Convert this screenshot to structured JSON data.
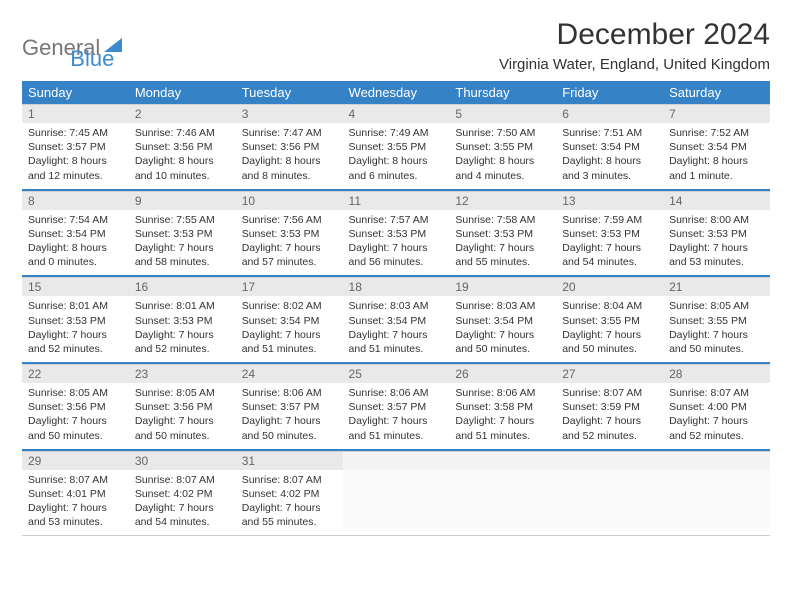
{
  "logo": {
    "text1": "General",
    "text2": "Blue"
  },
  "title": "December 2024",
  "location": "Virginia Water, England, United Kingdom",
  "colors": {
    "header_bg": "#3583c6",
    "daynum_bg": "#e9e9e9"
  },
  "daysOfWeek": [
    "Sunday",
    "Monday",
    "Tuesday",
    "Wednesday",
    "Thursday",
    "Friday",
    "Saturday"
  ],
  "weeks": [
    [
      {
        "n": "1",
        "sr": "7:45 AM",
        "ss": "3:57 PM",
        "dl": "8 hours and 12 minutes."
      },
      {
        "n": "2",
        "sr": "7:46 AM",
        "ss": "3:56 PM",
        "dl": "8 hours and 10 minutes."
      },
      {
        "n": "3",
        "sr": "7:47 AM",
        "ss": "3:56 PM",
        "dl": "8 hours and 8 minutes."
      },
      {
        "n": "4",
        "sr": "7:49 AM",
        "ss": "3:55 PM",
        "dl": "8 hours and 6 minutes."
      },
      {
        "n": "5",
        "sr": "7:50 AM",
        "ss": "3:55 PM",
        "dl": "8 hours and 4 minutes."
      },
      {
        "n": "6",
        "sr": "7:51 AM",
        "ss": "3:54 PM",
        "dl": "8 hours and 3 minutes."
      },
      {
        "n": "7",
        "sr": "7:52 AM",
        "ss": "3:54 PM",
        "dl": "8 hours and 1 minute."
      }
    ],
    [
      {
        "n": "8",
        "sr": "7:54 AM",
        "ss": "3:54 PM",
        "dl": "8 hours and 0 minutes."
      },
      {
        "n": "9",
        "sr": "7:55 AM",
        "ss": "3:53 PM",
        "dl": "7 hours and 58 minutes."
      },
      {
        "n": "10",
        "sr": "7:56 AM",
        "ss": "3:53 PM",
        "dl": "7 hours and 57 minutes."
      },
      {
        "n": "11",
        "sr": "7:57 AM",
        "ss": "3:53 PM",
        "dl": "7 hours and 56 minutes."
      },
      {
        "n": "12",
        "sr": "7:58 AM",
        "ss": "3:53 PM",
        "dl": "7 hours and 55 minutes."
      },
      {
        "n": "13",
        "sr": "7:59 AM",
        "ss": "3:53 PM",
        "dl": "7 hours and 54 minutes."
      },
      {
        "n": "14",
        "sr": "8:00 AM",
        "ss": "3:53 PM",
        "dl": "7 hours and 53 minutes."
      }
    ],
    [
      {
        "n": "15",
        "sr": "8:01 AM",
        "ss": "3:53 PM",
        "dl": "7 hours and 52 minutes."
      },
      {
        "n": "16",
        "sr": "8:01 AM",
        "ss": "3:53 PM",
        "dl": "7 hours and 52 minutes."
      },
      {
        "n": "17",
        "sr": "8:02 AM",
        "ss": "3:54 PM",
        "dl": "7 hours and 51 minutes."
      },
      {
        "n": "18",
        "sr": "8:03 AM",
        "ss": "3:54 PM",
        "dl": "7 hours and 51 minutes."
      },
      {
        "n": "19",
        "sr": "8:03 AM",
        "ss": "3:54 PM",
        "dl": "7 hours and 50 minutes."
      },
      {
        "n": "20",
        "sr": "8:04 AM",
        "ss": "3:55 PM",
        "dl": "7 hours and 50 minutes."
      },
      {
        "n": "21",
        "sr": "8:05 AM",
        "ss": "3:55 PM",
        "dl": "7 hours and 50 minutes."
      }
    ],
    [
      {
        "n": "22",
        "sr": "8:05 AM",
        "ss": "3:56 PM",
        "dl": "7 hours and 50 minutes."
      },
      {
        "n": "23",
        "sr": "8:05 AM",
        "ss": "3:56 PM",
        "dl": "7 hours and 50 minutes."
      },
      {
        "n": "24",
        "sr": "8:06 AM",
        "ss": "3:57 PM",
        "dl": "7 hours and 50 minutes."
      },
      {
        "n": "25",
        "sr": "8:06 AM",
        "ss": "3:57 PM",
        "dl": "7 hours and 51 minutes."
      },
      {
        "n": "26",
        "sr": "8:06 AM",
        "ss": "3:58 PM",
        "dl": "7 hours and 51 minutes."
      },
      {
        "n": "27",
        "sr": "8:07 AM",
        "ss": "3:59 PM",
        "dl": "7 hours and 52 minutes."
      },
      {
        "n": "28",
        "sr": "8:07 AM",
        "ss": "4:00 PM",
        "dl": "7 hours and 52 minutes."
      }
    ],
    [
      {
        "n": "29",
        "sr": "8:07 AM",
        "ss": "4:01 PM",
        "dl": "7 hours and 53 minutes."
      },
      {
        "n": "30",
        "sr": "8:07 AM",
        "ss": "4:02 PM",
        "dl": "7 hours and 54 minutes."
      },
      {
        "n": "31",
        "sr": "8:07 AM",
        "ss": "4:02 PM",
        "dl": "7 hours and 55 minutes."
      },
      {
        "empty": true
      },
      {
        "empty": true
      },
      {
        "empty": true
      },
      {
        "empty": true
      }
    ]
  ],
  "labels": {
    "sunrise": "Sunrise:",
    "sunset": "Sunset:",
    "daylight": "Daylight:"
  }
}
